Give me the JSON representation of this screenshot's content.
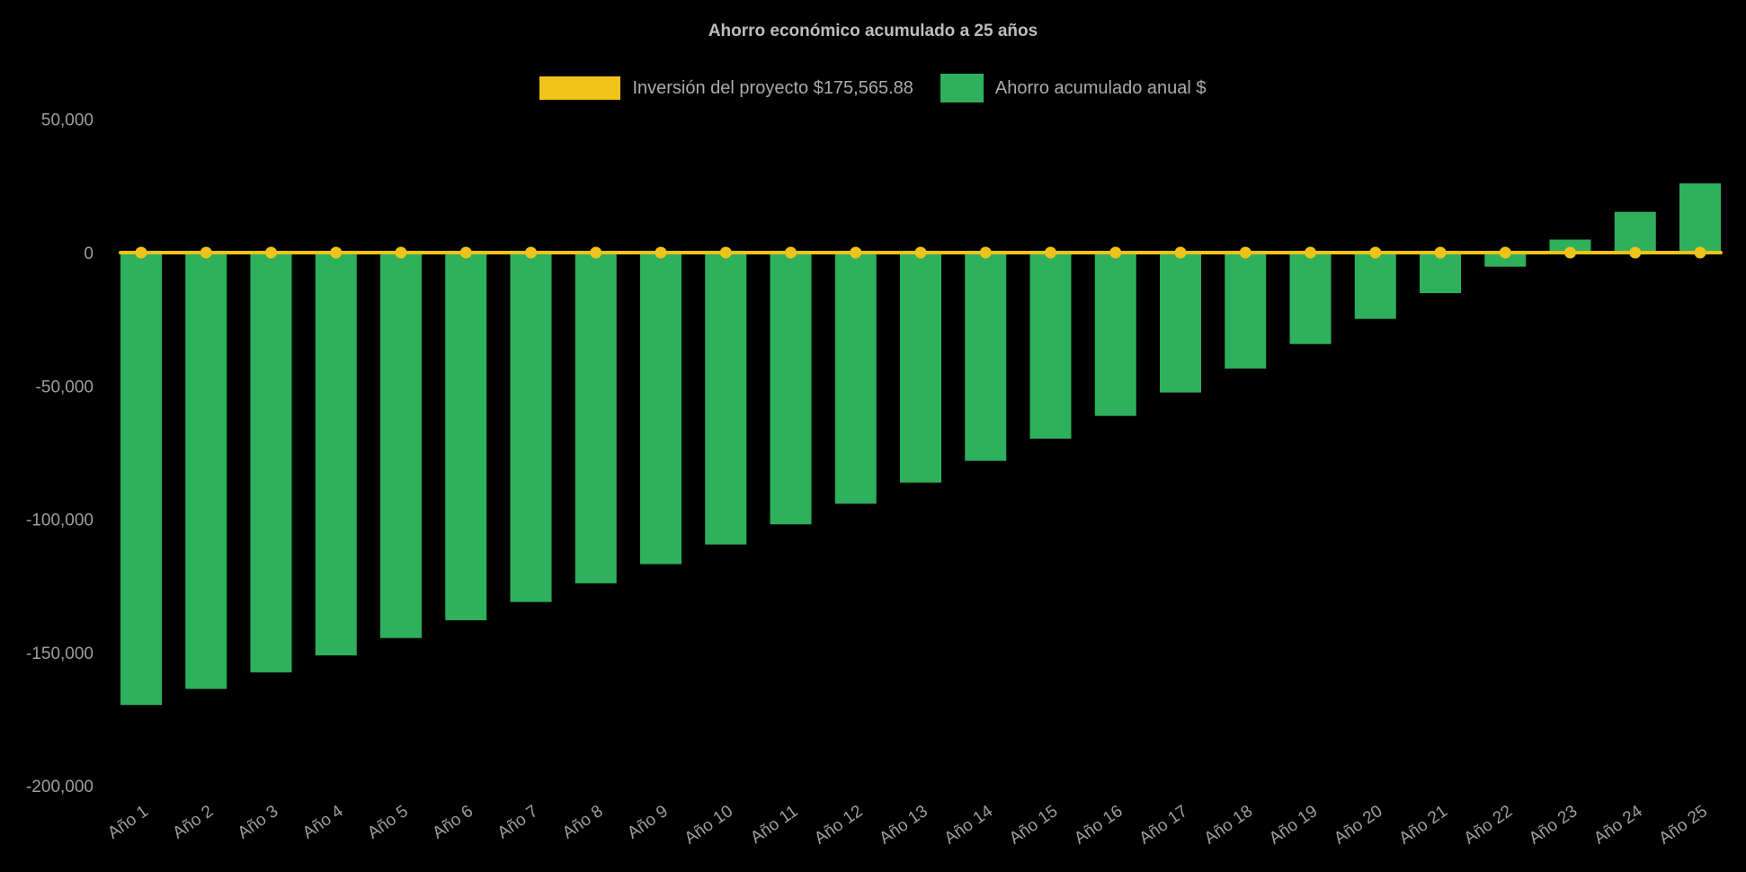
{
  "chart": {
    "background_color": "#000000",
    "title_color": "#bdbdbd",
    "label_color": "#9e9e9e"
  },
  "chart_data": {
    "type": "bar",
    "title": "Ahorro económico acumulado a 25 años",
    "xlabel": "",
    "ylabel": "",
    "grid": false,
    "legend_position": "top",
    "ylim": [
      -200000,
      50000
    ],
    "yticks": [
      {
        "value": 50000,
        "label": "50,000"
      },
      {
        "value": 0,
        "label": "0"
      },
      {
        "value": -50000,
        "label": "-50,000"
      },
      {
        "value": -100000,
        "label": "-100,000"
      },
      {
        "value": -150000,
        "label": "-150,000"
      },
      {
        "value": -200000,
        "label": "-200,000"
      }
    ],
    "categories": [
      "Año 1",
      "Año 2",
      "Año 3",
      "Año 4",
      "Año 5",
      "Año 6",
      "Año 7",
      "Año 8",
      "Año 9",
      "Año 10",
      "Año 11",
      "Año 12",
      "Año 13",
      "Año 14",
      "Año 15",
      "Año 16",
      "Año 17",
      "Año 18",
      "Año 19",
      "Año 20",
      "Año 21",
      "Año 22",
      "Año 23",
      "Año 24",
      "Año 25"
    ],
    "series": [
      {
        "name": "Inversión del proyecto $175,565.88",
        "type": "line",
        "color": "#efc319",
        "values": [
          0,
          0,
          0,
          0,
          0,
          0,
          0,
          0,
          0,
          0,
          0,
          0,
          0,
          0,
          0,
          0,
          0,
          0,
          0,
          0,
          0,
          0,
          0,
          0,
          0
        ]
      },
      {
        "name": "Ahorro acumulado anual $",
        "type": "column",
        "color": "#2eb05c",
        "values": [
          -169666,
          -163618,
          -157420,
          -151066,
          -144554,
          -137878,
          -131036,
          -124023,
          -116834,
          -109466,
          -101913,
          -94172,
          -86237,
          -78104,
          -69767,
          -61223,
          -52464,
          -43486,
          -34284,
          -24852,
          -15185,
          -5275,
          4882,
          15293,
          25965
        ]
      }
    ],
    "investment_amount": "$175,565.88"
  }
}
